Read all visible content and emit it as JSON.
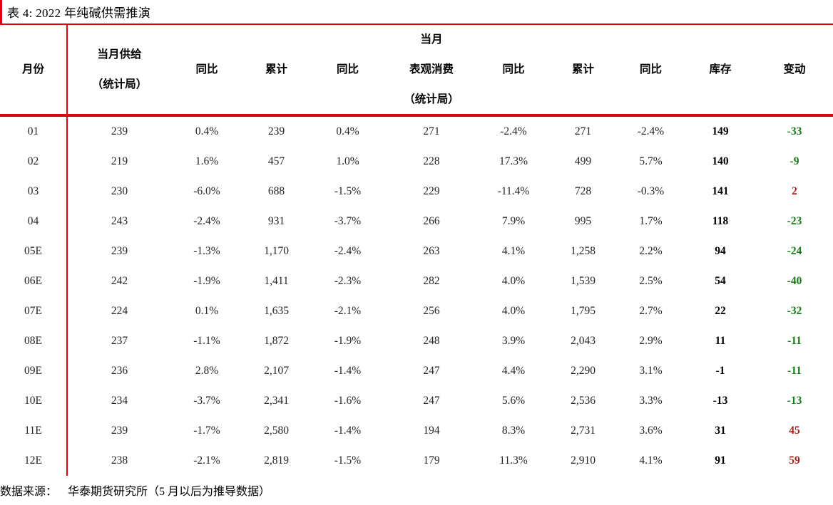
{
  "title": "表 4: 2022 年纯碱供需推演",
  "source": {
    "label": "数据来源：",
    "text": "华泰期货研究所（5 月以后为推导数据）"
  },
  "colors": {
    "accent_red": "#D70811",
    "negative_green": "#177C17",
    "positive_red": "#A8201A",
    "header_text": "#000000",
    "body_text": "#262626"
  },
  "table": {
    "headers": {
      "month": "月份",
      "supply_line1": "当月供给",
      "supply_line2": "（统计局）",
      "supply_yoy": "同比",
      "supply_cum": "累计",
      "supply_cum_yoy": "同比",
      "consumption_line1": "当月",
      "consumption_line2": "表观消费",
      "consumption_line3": "（统计局）",
      "consumption_yoy": "同比",
      "consumption_cum": "累计",
      "consumption_cum_yoy": "同比",
      "inventory": "库存",
      "change": "变动"
    },
    "cell_names": [
      "month-cell",
      "supply-cell",
      "supply-yoy-cell",
      "supply-cum-cell",
      "supply-cum-yoy-cell",
      "consumption-cell",
      "consumption-yoy-cell",
      "consumption-cum-cell",
      "consumption-cum-yoy-cell",
      "inventory-cell",
      "change-cell"
    ],
    "rows": [
      {
        "cells": [
          "01",
          "239",
          "0.4%",
          "239",
          "0.4%",
          "271",
          "-2.4%",
          "271",
          "-2.4%",
          "149",
          "-33"
        ]
      },
      {
        "cells": [
          "02",
          "219",
          "1.6%",
          "457",
          "1.0%",
          "228",
          "17.3%",
          "499",
          "5.7%",
          "140",
          "-9"
        ]
      },
      {
        "cells": [
          "03",
          "230",
          "-6.0%",
          "688",
          "-1.5%",
          "229",
          "-11.4%",
          "728",
          "-0.3%",
          "141",
          "2"
        ]
      },
      {
        "cells": [
          "04",
          "243",
          "-2.4%",
          "931",
          "-3.7%",
          "266",
          "7.9%",
          "995",
          "1.7%",
          "118",
          "-23"
        ]
      },
      {
        "cells": [
          "05E",
          "239",
          "-1.3%",
          "1,170",
          "-2.4%",
          "263",
          "4.1%",
          "1,258",
          "2.2%",
          "94",
          "-24"
        ]
      },
      {
        "cells": [
          "06E",
          "242",
          "-1.9%",
          "1,411",
          "-2.3%",
          "282",
          "4.0%",
          "1,539",
          "2.5%",
          "54",
          "-40"
        ]
      },
      {
        "cells": [
          "07E",
          "224",
          "0.1%",
          "1,635",
          "-2.1%",
          "256",
          "4.0%",
          "1,795",
          "2.7%",
          "22",
          "-32"
        ]
      },
      {
        "cells": [
          "08E",
          "237",
          "-1.1%",
          "1,872",
          "-1.9%",
          "248",
          "3.9%",
          "2,043",
          "2.9%",
          "11",
          "-11"
        ]
      },
      {
        "cells": [
          "09E",
          "236",
          "2.8%",
          "2,107",
          "-1.4%",
          "247",
          "4.4%",
          "2,290",
          "3.1%",
          "-1",
          "-11"
        ]
      },
      {
        "cells": [
          "10E",
          "234",
          "-3.7%",
          "2,341",
          "-1.6%",
          "247",
          "5.6%",
          "2,536",
          "3.3%",
          "-13",
          "-13"
        ]
      },
      {
        "cells": [
          "11E",
          "239",
          "-1.7%",
          "2,580",
          "-1.4%",
          "194",
          "8.3%",
          "2,731",
          "3.6%",
          "31",
          "45"
        ]
      },
      {
        "cells": [
          "12E",
          "238",
          "-2.1%",
          "2,819",
          "-1.5%",
          "179",
          "11.3%",
          "2,910",
          "4.1%",
          "91",
          "59"
        ]
      }
    ]
  }
}
